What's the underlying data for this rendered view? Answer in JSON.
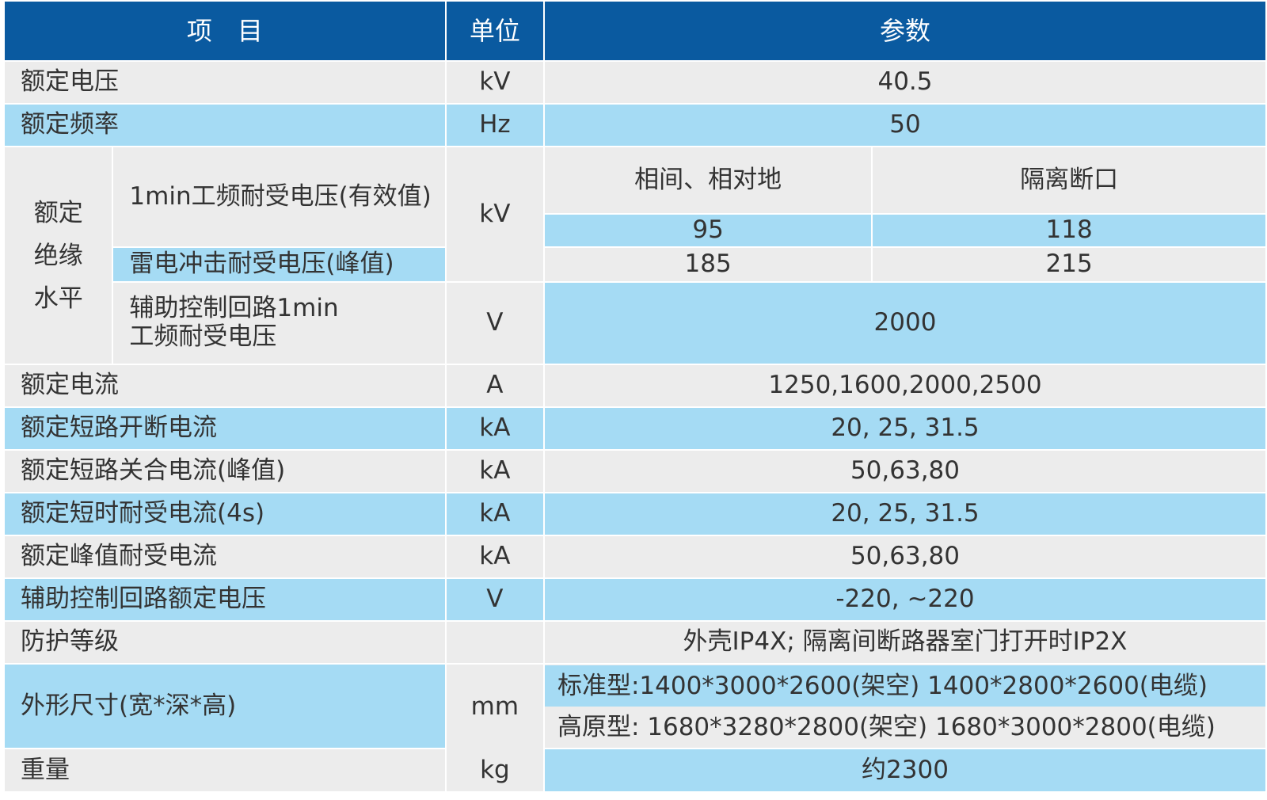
{
  "header": {
    "col_item": "项　目",
    "col_unit": "单位",
    "col_param": "参数"
  },
  "rows": {
    "rated_voltage": {
      "item": "额定电压",
      "unit": "kV",
      "value": "40.5"
    },
    "rated_frequency": {
      "item": "额定频率",
      "unit": "Hz",
      "value": "50"
    },
    "insulation": {
      "group_label": [
        "额定",
        "绝缘",
        "水平"
      ],
      "sub_header": {
        "phase": "相间、相对地",
        "isolation": "隔离断口"
      },
      "power_freq": {
        "item": "1min工频耐受电压(有效值)",
        "phase": "95",
        "isolation": "118"
      },
      "lightning": {
        "item": "雷电冲击耐受电压(峰值)",
        "phase": "185",
        "isolation": "215"
      },
      "unit_kv": "kV",
      "aux": {
        "item_line1": "辅助控制回路1min",
        "item_line2": "工频耐受电压",
        "unit": "V",
        "value": "2000"
      }
    },
    "rated_current": {
      "item": "额定电流",
      "unit": "A",
      "value": "1250,1600,2000,2500"
    },
    "short_break": {
      "item": "额定短路开断电流",
      "unit": "kA",
      "value": "20, 25, 31.5"
    },
    "short_make": {
      "item": "额定短路关合电流(峰值)",
      "unit": "kA",
      "value": "50,63,80"
    },
    "short_time": {
      "item": "额定短时耐受电流(4s)",
      "unit": "kA",
      "value": "20, 25, 31.5"
    },
    "peak_withstand": {
      "item": "额定峰值耐受电流",
      "unit": "kA",
      "value": "50,63,80"
    },
    "aux_voltage": {
      "item": "辅助控制回路额定电压",
      "unit": "V",
      "value": "-220, ~220"
    },
    "protection": {
      "item": "防护等级",
      "unit": "",
      "value": "外壳IP4X; 隔离间断路器室门打开时IP2X"
    },
    "dimensions": {
      "item": "外形尺寸(宽*深*高)",
      "unit": "mm",
      "standard": "标准型:1400*3000*2600(架空)  1400*2800*2600(电缆)",
      "plateau": "高原型: 1680*3280*2800(架空) 1680*3000*2800(电缆)"
    },
    "weight": {
      "item": "重量",
      "unit": "kg",
      "value": "约2300"
    }
  }
}
